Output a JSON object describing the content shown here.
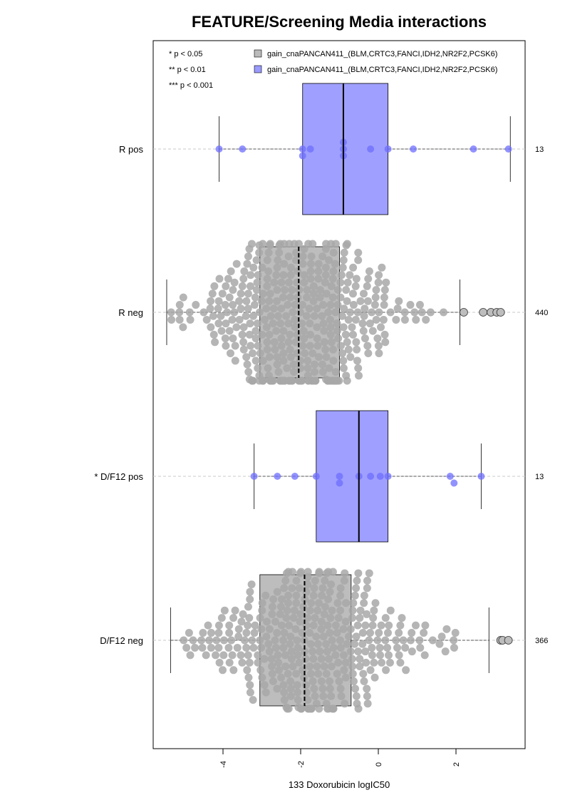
{
  "chart_data": {
    "type": "boxplot-beeswarm",
    "orientation": "horizontal",
    "title": "FEATURE/Screening Media interactions",
    "xlabel": "133 Doxorubicin logIC50",
    "xlim": [
      -5.8,
      3.7
    ],
    "xticks": [
      {
        "value": -4,
        "label": "-4"
      },
      {
        "value": -2,
        "label": "-2"
      },
      {
        "value": 0,
        "label": "0"
      },
      {
        "value": 2,
        "label": "2"
      }
    ],
    "significance_legend": [
      "* p < 0.05",
      "** p < 0.01",
      "*** p < 0.001"
    ],
    "legend": [
      {
        "label": "gain_cnaPANCAN411_(BLM,CRTC3,FANCI,IDH2,NR2F2,PCSK6)",
        "color": "#bbbbbb"
      },
      {
        "label": "gain_cnaPANCAN411_(BLM,CRTC3,FANCI,IDH2,NR2F2,PCSK6)",
        "color": "#9a9aff"
      }
    ],
    "colors": {
      "pos_box": "#9f9fff",
      "pos_point": "#6d6dff",
      "neg_box": "#bdbdbd",
      "neg_point": "#a8a8a8"
    },
    "groups": [
      {
        "label": "R pos",
        "count": "13",
        "status": "pos",
        "box": {
          "whisker_low": -4.1,
          "q1": -1.95,
          "median": -0.9,
          "q3": 0.25,
          "whisker_high": 3.4
        },
        "points": [
          -4.1,
          -3.5,
          -1.95,
          -1.95,
          -1.75,
          -0.9,
          -0.9,
          -0.9,
          -0.2,
          0.25,
          0.9,
          2.45,
          3.35
        ],
        "outliers": []
      },
      {
        "label": "R neg",
        "count": "440",
        "status": "neg",
        "box": {
          "whisker_low": -5.45,
          "q1": -3.05,
          "median": -2.05,
          "q3": -1.0,
          "whisker_high": 2.1
        },
        "points": {
          "n": 440,
          "mean": -2.0,
          "sd": 1.35,
          "min": -5.4,
          "max": 2.1,
          "seed": 11
        },
        "outliers": [
          2.2,
          2.7,
          2.9,
          3.05,
          3.15
        ]
      },
      {
        "label": "* D/F12 pos",
        "count": "13",
        "status": "pos",
        "box": {
          "whisker_low": -3.2,
          "q1": -1.6,
          "median": -0.5,
          "q3": 0.25,
          "whisker_high": 2.65
        },
        "points": [
          -3.2,
          -2.6,
          -2.15,
          -1.6,
          -1.0,
          -1.0,
          -0.5,
          -0.2,
          0.05,
          0.25,
          1.85,
          1.95,
          2.65
        ],
        "outliers": []
      },
      {
        "label": "D/F12 neg",
        "count": "366",
        "status": "neg",
        "box": {
          "whisker_low": -5.35,
          "q1": -3.05,
          "median": -1.9,
          "q3": -0.7,
          "whisker_high": 2.85
        },
        "points": {
          "n": 366,
          "mean": -1.85,
          "sd": 1.45,
          "min": -5.3,
          "max": 2.85,
          "seed": 29
        },
        "outliers": [
          3.15,
          3.2,
          3.35
        ]
      }
    ]
  }
}
